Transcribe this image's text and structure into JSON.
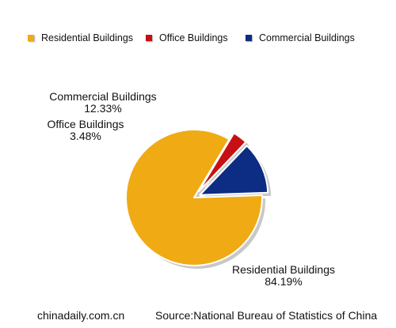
{
  "chart_data": {
    "type": "pie",
    "title": "",
    "slices": [
      {
        "label": "Residential Buildings",
        "value": 84.19,
        "percent_label": "84.19%",
        "color": "#f0aa13"
      },
      {
        "label": "Office Buildings",
        "value": 3.48,
        "percent_label": "3.48%",
        "color": "#c80f14"
      },
      {
        "label": "Commercial Buildings",
        "value": 12.33,
        "percent_label": "12.33%",
        "color": "#0d2c83"
      }
    ],
    "legend_position": "top"
  },
  "footer": {
    "site": "chinadaily.com.cn",
    "source": "Source:National Bureau of Statistics of China"
  }
}
